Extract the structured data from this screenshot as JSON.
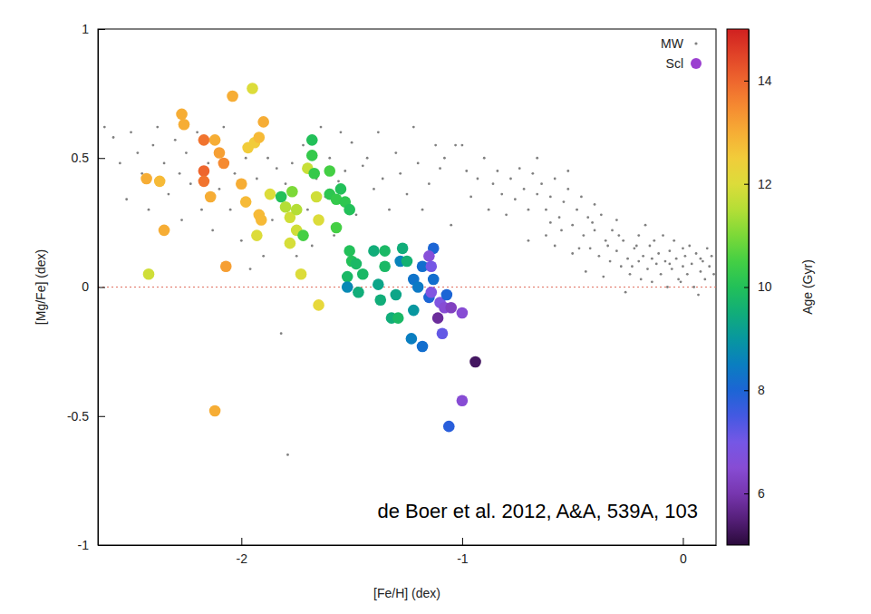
{
  "chart_data": {
    "type": "scatter",
    "x_label": "[Fe/H] (dex)",
    "y_label": "[Mg/Fe] (dex)",
    "xlim": [
      -2.65,
      0.15
    ],
    "ylim": [
      -1,
      1
    ],
    "xticks": [
      -2,
      -1,
      0
    ],
    "yticks": [
      -1,
      -0.5,
      0,
      0.5,
      1
    ],
    "grid": false,
    "legend": "upper right",
    "reference_y": 0,
    "annotations": [
      "de Boer et al. 2012, A&A, 539A, 103"
    ],
    "colorbar": {
      "label": "Age (Gyr)",
      "range": [
        5,
        15
      ],
      "ticks": [
        6,
        8,
        10,
        12,
        14
      ]
    },
    "series": [
      {
        "name": "MW",
        "color": "#808080",
        "marker": "dot",
        "x": [
          -2.65,
          -2.62,
          -2.58,
          -2.55,
          -2.52,
          -2.5,
          -2.47,
          -2.45,
          -2.42,
          -2.4,
          -2.38,
          -2.35,
          -2.33,
          -2.3,
          -2.28,
          -2.27,
          -2.25,
          -2.23,
          -2.2,
          -2.18,
          -2.15,
          -2.13,
          -2.1,
          -2.08,
          -2.05,
          -2.03,
          -2.0,
          -1.98,
          -1.96,
          -1.93,
          -1.9,
          -1.88,
          -1.86,
          -1.84,
          -1.82,
          -1.8,
          -1.79,
          -1.77,
          -1.75,
          -1.72,
          -1.7,
          -1.68,
          -1.66,
          -1.64,
          -1.62,
          -1.6,
          -1.58,
          -1.56,
          -1.55,
          -1.53,
          -1.5,
          -1.48,
          -1.45,
          -1.43,
          -1.4,
          -1.38,
          -1.36,
          -1.33,
          -1.3,
          -1.28,
          -1.25,
          -1.22,
          -1.2,
          -1.18,
          -1.15,
          -1.12,
          -1.1,
          -1.08,
          -1.05,
          -1.03,
          -1.0,
          -0.98,
          -0.96,
          -0.93,
          -0.9,
          -0.88,
          -0.86,
          -0.84,
          -0.82,
          -0.8,
          -0.78,
          -0.76,
          -0.74,
          -0.72,
          -0.7,
          -0.68,
          -0.66,
          -0.64,
          -0.62,
          -0.6,
          -0.58,
          -0.56,
          -0.54,
          -0.52,
          -0.5,
          -0.48,
          -0.46,
          -0.45,
          -0.43,
          -0.42,
          -0.4,
          -0.38,
          -0.37,
          -0.35,
          -0.33,
          -0.32,
          -0.3,
          -0.28,
          -0.27,
          -0.25,
          -0.24,
          -0.22,
          -0.2,
          -0.19,
          -0.18,
          -0.16,
          -0.15,
          -0.14,
          -0.12,
          -0.11,
          -0.1,
          -0.08,
          -0.07,
          -0.06,
          -0.05,
          -0.03,
          -0.02,
          0.0,
          0.01,
          0.02,
          0.04,
          0.05,
          0.06,
          0.08,
          0.09,
          0.1,
          0.12,
          0.13,
          0.14,
          -0.44,
          -0.36,
          -0.26,
          -0.2,
          -0.13,
          -0.09,
          0.03,
          0.11,
          -0.58,
          -0.62,
          -0.7,
          -0.66,
          -0.52,
          -0.4,
          -0.3,
          -0.17,
          -0.04,
          -0.5,
          -0.34,
          -0.23,
          -0.01,
          0.07,
          -0.6,
          -0.55,
          -0.47,
          -0.41,
          -0.29,
          -0.21,
          -0.14,
          -0.06,
          0.0,
          0.08
        ],
        "values": [
          0.5,
          0.62,
          0.58,
          0.48,
          0.34,
          0.6,
          0.52,
          0.44,
          0.3,
          0.55,
          0.62,
          0.48,
          0.36,
          0.57,
          0.44,
          0.26,
          0.52,
          0.4,
          0.6,
          0.3,
          0.48,
          0.22,
          0.38,
          0.62,
          0.3,
          0.44,
          0.18,
          0.5,
          0.07,
          0.42,
          0.12,
          0.5,
          0.26,
          0.46,
          -0.18,
          0.4,
          -0.65,
          0.48,
          0.12,
          0.55,
          0.3,
          0.16,
          0.42,
          0.62,
          0.35,
          0.5,
          0.2,
          0.41,
          0.6,
          0.45,
          0.56,
          0.28,
          0.47,
          0.5,
          0.38,
          0.6,
          0.42,
          0.3,
          0.52,
          0.44,
          0.36,
          0.62,
          0.48,
          0.3,
          0.4,
          0.55,
          0.46,
          0.5,
          0.24,
          0.55,
          0.55,
          0.45,
          0.35,
          0.42,
          0.5,
          0.3,
          0.4,
          0.45,
          0.36,
          0.28,
          0.42,
          0.34,
          0.46,
          0.38,
          0.3,
          0.44,
          0.36,
          0.4,
          0.3,
          0.35,
          0.42,
          0.27,
          0.33,
          0.38,
          0.24,
          0.3,
          0.35,
          0.2,
          0.27,
          0.15,
          0.22,
          0.12,
          0.28,
          0.18,
          0.1,
          0.22,
          0.14,
          0.08,
          0.18,
          0.11,
          0.05,
          0.15,
          0.1,
          0.03,
          0.12,
          0.07,
          0.16,
          0.02,
          0.09,
          0.13,
          0.05,
          0.1,
          0.0,
          0.14,
          0.07,
          0.11,
          0.03,
          0.08,
          0.12,
          0.05,
          0.09,
          0.0,
          0.13,
          0.06,
          0.1,
          0.03,
          0.08,
          0.12,
          0.05,
          0.06,
          0.04,
          -0.02,
          0.2,
          0.18,
          0.2,
          0.16,
          0.15,
          0.16,
          0.2,
          0.18,
          0.5,
          0.45,
          0.32,
          0.26,
          0.24,
          0.18,
          0.13,
          0.16,
          0.08,
          0.02,
          -0.03,
          0.25,
          0.22,
          0.15,
          0.25,
          0.2,
          0.16,
          0.11,
          0.09,
          0.15,
          0.11
        ]
      },
      {
        "name": "Scl",
        "color": "#9b40d0",
        "marker": "circle",
        "x": [
          -2.43,
          -2.37,
          -2.42,
          -2.35,
          -2.27,
          -2.26,
          -2.17,
          -2.17,
          -2.17,
          -2.14,
          -2.12,
          -2.1,
          -2.08,
          -2.07,
          -2.12,
          -2.04,
          -2.0,
          -1.98,
          -1.95,
          -1.97,
          -1.94,
          -1.92,
          -1.9,
          -1.92,
          -1.91,
          -1.93,
          -1.87,
          -1.82,
          -1.8,
          -1.78,
          -1.77,
          -1.78,
          -1.75,
          -1.75,
          -1.73,
          -1.72,
          -1.7,
          -1.68,
          -1.68,
          -1.67,
          -1.66,
          -1.65,
          -1.65,
          -1.6,
          -1.6,
          -1.57,
          -1.57,
          -1.55,
          -1.53,
          -1.51,
          -1.51,
          -1.5,
          -1.52,
          -1.48,
          -1.52,
          -1.47,
          -1.45,
          -1.4,
          -1.38,
          -1.37,
          -1.35,
          -1.35,
          -1.32,
          -1.3,
          -1.29,
          -1.27,
          -1.28,
          -1.25,
          -1.22,
          -1.22,
          -1.2,
          -1.23,
          -1.18,
          -1.18,
          -1.13,
          -1.15,
          -1.13,
          -1.11,
          -1.14,
          -1.09,
          -1.1,
          -1.08,
          -1.07,
          -1.15,
          -1.14,
          -1.06,
          -1.0,
          -1.0,
          -0.94,
          -1.05
        ],
        "values": [
          0.42,
          0.41,
          0.05,
          0.22,
          0.67,
          0.63,
          0.57,
          0.45,
          0.41,
          0.35,
          0.57,
          0.52,
          0.48,
          0.08,
          -0.48,
          0.74,
          0.4,
          0.33,
          0.77,
          0.54,
          0.56,
          0.58,
          0.64,
          0.28,
          0.26,
          0.2,
          0.36,
          0.35,
          0.31,
          0.27,
          0.37,
          0.17,
          0.3,
          0.22,
          0.05,
          0.2,
          0.46,
          0.57,
          0.51,
          0.44,
          0.35,
          0.26,
          -0.07,
          0.45,
          0.36,
          0.23,
          0.34,
          0.38,
          0.33,
          0.3,
          0.14,
          0.1,
          0.04,
          0.09,
          0.0,
          -0.02,
          0.05,
          0.14,
          0.01,
          -0.05,
          0.14,
          0.08,
          -0.12,
          -0.03,
          -0.12,
          0.15,
          0.1,
          0.1,
          -0.09,
          0.03,
          0.0,
          -0.2,
          -0.23,
          0.08,
          0.15,
          -0.04,
          0.03,
          -0.12,
          -0.02,
          -0.18,
          -0.06,
          -0.08,
          -0.03,
          0.12,
          0.08,
          -0.54,
          -0.44,
          -0.1,
          -0.29,
          -0.08
        ],
        "age": [
          13,
          12.8,
          11.8,
          13,
          13,
          13,
          13.8,
          14,
          13.8,
          13,
          13,
          13.2,
          13.5,
          13.2,
          13,
          13,
          13,
          12.8,
          12,
          12.5,
          12.5,
          12.8,
          13,
          12.8,
          12.8,
          12,
          12,
          10,
          11.5,
          11.8,
          11,
          11.9,
          11.5,
          11.8,
          12,
          10.5,
          11.7,
          10,
          10.3,
          10.3,
          11.8,
          12,
          12.2,
          10.5,
          10.2,
          10.5,
          10.3,
          10,
          10.2,
          10,
          10,
          10,
          9.8,
          9.8,
          8.7,
          9.5,
          9.8,
          9.5,
          9.3,
          9.5,
          9.8,
          9.8,
          9.5,
          9.3,
          9.8,
          9.5,
          8.6,
          9.6,
          9,
          8.3,
          8.4,
          8.5,
          8.2,
          8.2,
          8,
          8,
          8.2,
          5.8,
          6.8,
          7.2,
          6.8,
          6.5,
          8,
          6.6,
          7,
          7.8,
          6.5,
          6.5,
          5.3,
          6.2
        ]
      }
    ]
  }
}
